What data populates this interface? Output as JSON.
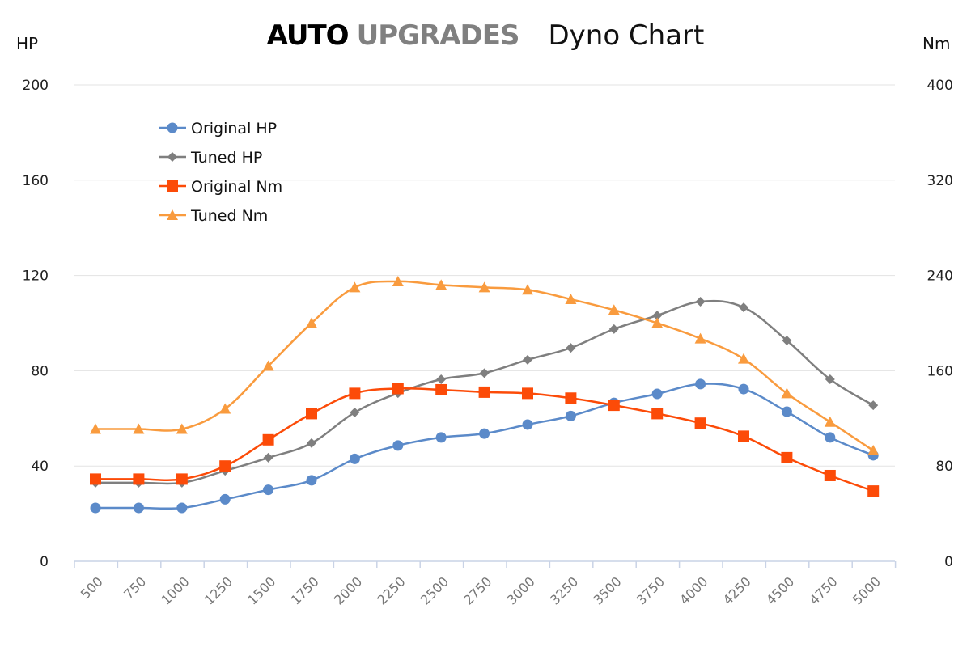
{
  "chart_data": {
    "type": "line",
    "title": {
      "brand_primary": "AUTO",
      "brand_secondary": "UPGRADES",
      "subtitle": "Dyno Chart"
    },
    "ylabel_left": "HP",
    "ylabel_right": "Nm",
    "ylim_left": [
      0,
      200
    ],
    "ylim_right": [
      0,
      400
    ],
    "yticks_left": [
      0,
      40,
      80,
      120,
      160,
      200
    ],
    "yticks_right": [
      0,
      80,
      160,
      240,
      320,
      400
    ],
    "grid": true,
    "legend_position": "top-left",
    "categories": [
      "500",
      "750",
      "1000",
      "1250",
      "1500",
      "1750",
      "2000",
      "2250",
      "2500",
      "2750",
      "3000",
      "3250",
      "3500",
      "3750",
      "4000",
      "4250",
      "4500",
      "4750",
      "5000"
    ],
    "series": [
      {
        "name": "Original HP",
        "axis": "left",
        "color": "#5b8ac9",
        "marker": "circle",
        "values": [
          22.4,
          22.4,
          22.4,
          26,
          30,
          34,
          43,
          48.6,
          52,
          53.6,
          57.4,
          61,
          66.5,
          70.3,
          74.4,
          72.3,
          62.8,
          52,
          44.5
        ]
      },
      {
        "name": "Tuned HP",
        "axis": "left",
        "color": "#7f7f7f",
        "marker": "diamond",
        "values": [
          33,
          33,
          33,
          38,
          43.5,
          49.6,
          62.5,
          70.6,
          76.4,
          79,
          84.6,
          89.6,
          97.5,
          103.2,
          109,
          106.6,
          92.7,
          76.4,
          65.5
        ]
      },
      {
        "name": "Original Nm",
        "axis": "right",
        "color": "#fc4b08",
        "marker": "square",
        "values": [
          69,
          69,
          69,
          80,
          102,
          124,
          141,
          145,
          144,
          142,
          141,
          137,
          131,
          124,
          116,
          105,
          87,
          72,
          59
        ]
      },
      {
        "name": "Tuned Nm",
        "axis": "right",
        "color": "#f99b3e",
        "marker": "triangle",
        "values": [
          111,
          111,
          111,
          128,
          164,
          200,
          230,
          235,
          232,
          230,
          228,
          220,
          211,
          200,
          187,
          170,
          141,
          117,
          93
        ]
      }
    ]
  }
}
